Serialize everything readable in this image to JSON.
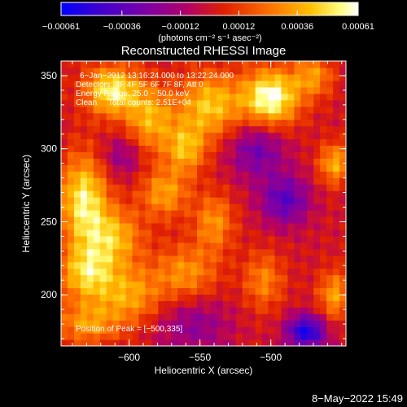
{
  "chart_data": {
    "type": "heatmap",
    "title": "Reconstructed RHESSI Image",
    "xlabel": "Heliocentric X (arcsec)",
    "ylabel": "Heliocentric Y (arcsec)",
    "xlim": [
      -648,
      -447
    ],
    "ylim": [
      165,
      360
    ],
    "xticks": [
      -600,
      -550,
      -500
    ],
    "xtick_labels": [
      "−600",
      "−550",
      "−500"
    ],
    "yticks": [
      200,
      250,
      300,
      350
    ],
    "ytick_labels": [
      "200",
      "250",
      "300",
      "350"
    ],
    "colorbar": {
      "range": [
        -0.00061,
        0.00061
      ],
      "ticks": [
        -0.00061,
        -0.00036,
        -0.00012,
        0.00012,
        0.00036,
        0.00061
      ],
      "tick_labels": [
        "−0.00061",
        "−0.00036",
        "−0.00012",
        "0.00012",
        "0.00036",
        "0.00061"
      ],
      "unit_label": "(photons cm⁻² s⁻¹ asec⁻²)",
      "colormap": [
        "#0000ff",
        "#3a00d0",
        "#7a00a8",
        "#b0006a",
        "#e02000",
        "#ff7000",
        "#ffc000",
        "#ffff80",
        "#ffffff"
      ]
    },
    "annotations": [
      "6−Jan−2012 13:16:24.000 to 13:22:24.000",
      "Detectors: 3F 4F 5F 6F 7F 8F, Att 0",
      "Energy Range: 25.0 − 50.0 keV",
      "Clean     Total counts: 2.51E+04",
      "Position of Peak = [−500,335]"
    ],
    "peak": {
      "x": -500,
      "y": 335
    },
    "blobs": [
      {
        "x": -500,
        "y": 335,
        "sx": 14,
        "sy": 14,
        "a": 1.0
      },
      {
        "x": -543,
        "y": 330,
        "sx": 16,
        "sy": 16,
        "a": 0.7
      },
      {
        "x": -612,
        "y": 340,
        "sx": 14,
        "sy": 12,
        "a": 0.85
      },
      {
        "x": -585,
        "y": 320,
        "sx": 12,
        "sy": 16,
        "a": 0.6
      },
      {
        "x": -632,
        "y": 265,
        "sx": 12,
        "sy": 22,
        "a": 0.85
      },
      {
        "x": -610,
        "y": 240,
        "sx": 14,
        "sy": 14,
        "a": 0.6
      },
      {
        "x": -575,
        "y": 270,
        "sx": 12,
        "sy": 12,
        "a": 0.55
      },
      {
        "x": -560,
        "y": 300,
        "sx": 10,
        "sy": 12,
        "a": 0.6
      },
      {
        "x": -630,
        "y": 215,
        "sx": 14,
        "sy": 14,
        "a": 0.7
      },
      {
        "x": -600,
        "y": 200,
        "sx": 16,
        "sy": 14,
        "a": 0.55
      },
      {
        "x": -560,
        "y": 215,
        "sx": 16,
        "sy": 14,
        "a": 0.5
      },
      {
        "x": -540,
        "y": 250,
        "sx": 10,
        "sy": 14,
        "a": 0.5
      },
      {
        "x": -505,
        "y": 210,
        "sx": 10,
        "sy": 14,
        "a": 0.45
      },
      {
        "x": -630,
        "y": 180,
        "sx": 16,
        "sy": 10,
        "a": 0.5
      },
      {
        "x": -455,
        "y": 290,
        "sx": 8,
        "sy": 10,
        "a": 0.6
      },
      {
        "x": -455,
        "y": 200,
        "sx": 8,
        "sy": 12,
        "a": 0.55
      },
      {
        "x": -470,
        "y": 350,
        "sx": 10,
        "sy": 10,
        "a": 0.5
      },
      {
        "x": -490,
        "y": 265,
        "sx": 12,
        "sy": 12,
        "a": -0.6
      },
      {
        "x": -510,
        "y": 300,
        "sx": 14,
        "sy": 14,
        "a": -0.5
      },
      {
        "x": -555,
        "y": 180,
        "sx": 18,
        "sy": 14,
        "a": -0.35
      },
      {
        "x": -475,
        "y": 175,
        "sx": 10,
        "sy": 8,
        "a": -0.9
      },
      {
        "x": -605,
        "y": 295,
        "sx": 10,
        "sy": 10,
        "a": -0.35
      }
    ]
  },
  "footer": {
    "timestamp": "8−May−2022 15:49"
  }
}
